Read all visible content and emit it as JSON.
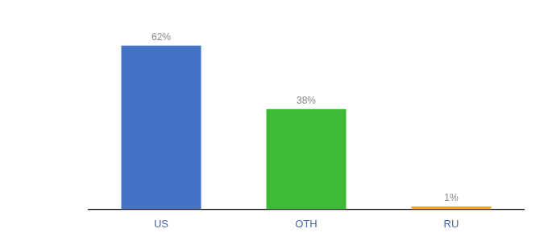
{
  "chart_data": {
    "type": "bar",
    "categories": [
      "US",
      "OTH",
      "RU"
    ],
    "values": [
      62,
      38,
      1
    ],
    "value_labels": [
      "62%",
      "38%",
      "1%"
    ],
    "colors": [
      "#4472c4",
      "#3dbb35",
      "#f5a623"
    ],
    "ylim": [
      0,
      72
    ],
    "grid": false,
    "data_labels": true,
    "tick_labels": "x"
  }
}
